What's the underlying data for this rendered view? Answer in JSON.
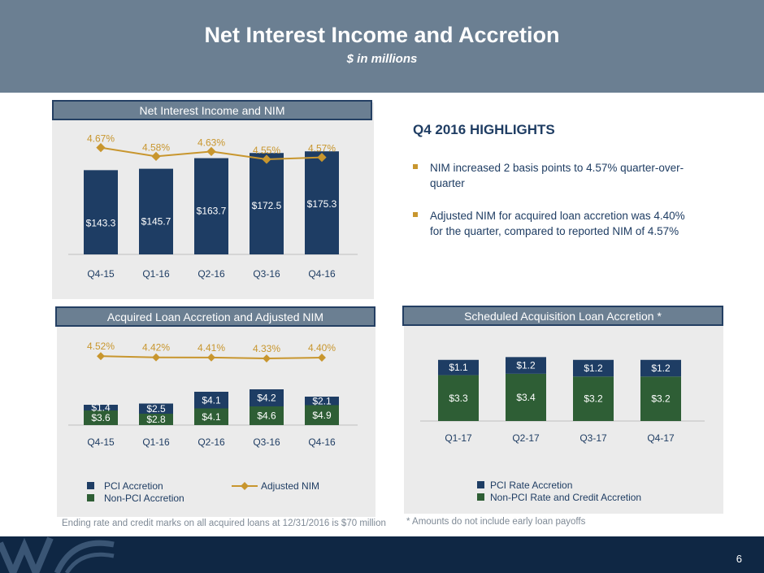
{
  "header": {
    "title": "Net Interest Income and Accretion",
    "subtitle": "$ in millions"
  },
  "highlights": {
    "title": "Q4 2016 HIGHLIGHTS",
    "bullets": [
      "NIM increased 2 basis points to 4.57% quarter-over-quarter",
      "Adjusted NIM for acquired loan accretion was 4.40% for the quarter, compared to reported NIM of 4.57%"
    ]
  },
  "notes": {
    "left": "Ending rate and credit marks on all acquired loans at 12/31/2016 is $70 million",
    "right": "* Amounts do not include early loan payoffs"
  },
  "page_number": "6",
  "colors": {
    "navy": "#1e3d64",
    "green": "#2e5e35",
    "gold": "#c8962e",
    "header": "#6b7f92"
  },
  "chart_data": [
    {
      "type": "bar",
      "title": "Net Interest Income and NIM",
      "categories": [
        "Q4-15",
        "Q1-16",
        "Q2-16",
        "Q3-16",
        "Q4-16"
      ],
      "series": [
        {
          "values": [
            143.3,
            145.7,
            163.7,
            172.5,
            175.3
          ],
          "labels": [
            "$143.3",
            "$145.7",
            "$163.7",
            "$172.5",
            "$175.3"
          ]
        },
        {
          "type": "line",
          "values": [
            4.67,
            4.58,
            4.63,
            4.55,
            4.57
          ],
          "labels": [
            "4.67%",
            "4.58%",
            "4.63%",
            "4.55%",
            "4.57%"
          ]
        }
      ]
    },
    {
      "type": "bar",
      "title": "Acquired Loan Accretion and Adjusted NIM",
      "stacked": true,
      "categories": [
        "Q4-15",
        "Q1-16",
        "Q2-16",
        "Q3-16",
        "Q4-16"
      ],
      "series": [
        {
          "name": "Non-PCI Accretion",
          "values": [
            3.6,
            2.8,
            4.1,
            4.6,
            4.9
          ],
          "labels": [
            "$3.6",
            "$2.8",
            "$4.1",
            "$4.6",
            "$4.9"
          ]
        },
        {
          "name": "PCI Accretion",
          "values": [
            1.4,
            2.5,
            4.1,
            4.2,
            2.1
          ],
          "labels": [
            "$1.4",
            "$2.5",
            "$4.1",
            "$4.2",
            "$2.1"
          ]
        },
        {
          "name": "Adjusted NIM",
          "type": "line",
          "values": [
            4.52,
            4.42,
            4.41,
            4.33,
            4.4
          ],
          "labels": [
            "4.52%",
            "4.42%",
            "4.41%",
            "4.33%",
            "4.40%"
          ]
        }
      ],
      "legend": "bottom"
    },
    {
      "type": "bar",
      "title": "Scheduled Acquisition Loan Accretion *",
      "stacked": true,
      "categories": [
        "Q1-17",
        "Q2-17",
        "Q3-17",
        "Q4-17"
      ],
      "series": [
        {
          "name": "Non-PCI Rate and Credit Accretion",
          "values": [
            3.3,
            3.4,
            3.2,
            3.2
          ],
          "labels": [
            "$3.3",
            "$3.4",
            "$3.2",
            "$3.2"
          ]
        },
        {
          "name": "PCI Rate Accretion",
          "values": [
            1.1,
            1.2,
            1.2,
            1.2
          ],
          "labels": [
            "$1.1",
            "$1.2",
            "$1.2",
            "$1.2"
          ]
        }
      ],
      "legend": "bottom"
    }
  ]
}
